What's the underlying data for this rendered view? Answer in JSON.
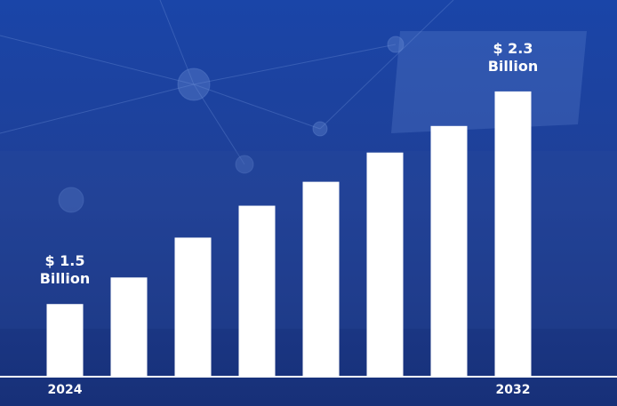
{
  "chart_data": {
    "type": "bar",
    "categories": [
      "2024",
      null,
      null,
      null,
      null,
      null,
      null,
      "2032"
    ],
    "values": [
      1.5,
      1.6,
      1.75,
      1.87,
      1.96,
      2.07,
      2.17,
      2.3
    ],
    "value_labels": [
      "$ 1.5\nBillion",
      null,
      null,
      null,
      null,
      null,
      null,
      "$ 2.3\nBillion"
    ],
    "color": "#ffffff",
    "ylim": [
      1.23,
      2.4
    ]
  }
}
